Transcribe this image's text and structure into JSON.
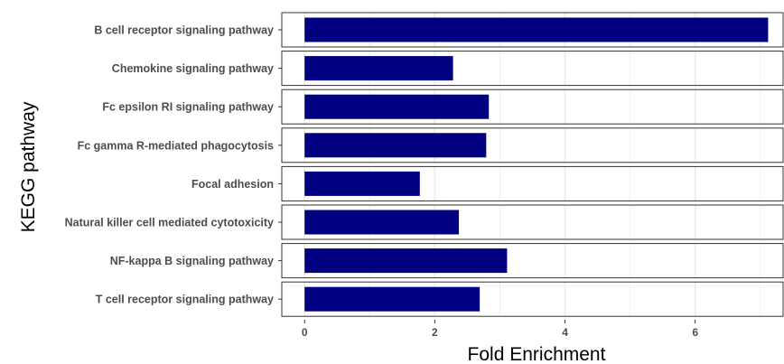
{
  "chart_data": {
    "type": "bar",
    "orientation": "horizontal",
    "faceted": true,
    "categories": [
      "B cell receptor signaling pathway",
      "Chemokine signaling pathway",
      "Fc epsilon RI signaling pathway",
      "Fc gamma R-mediated phagocytosis",
      "Focal adhesion",
      "Natural killer cell mediated cytotoxicity",
      "NF-kappa B signaling pathway",
      "T cell receptor signaling pathway"
    ],
    "values": [
      7.12,
      2.28,
      2.83,
      2.79,
      1.77,
      2.37,
      3.11,
      2.69
    ],
    "xlabel": "Fold Enrichment",
    "ylabel": "KEGG pathway",
    "xlim": [
      -0.35,
      7.35
    ],
    "x_ticks": [
      0,
      2,
      4,
      6
    ],
    "grid": true,
    "colors": {
      "bar": "#000080",
      "panel_border": "#333333",
      "grid": "#ebebeb",
      "label": "#4d4d4d"
    }
  }
}
